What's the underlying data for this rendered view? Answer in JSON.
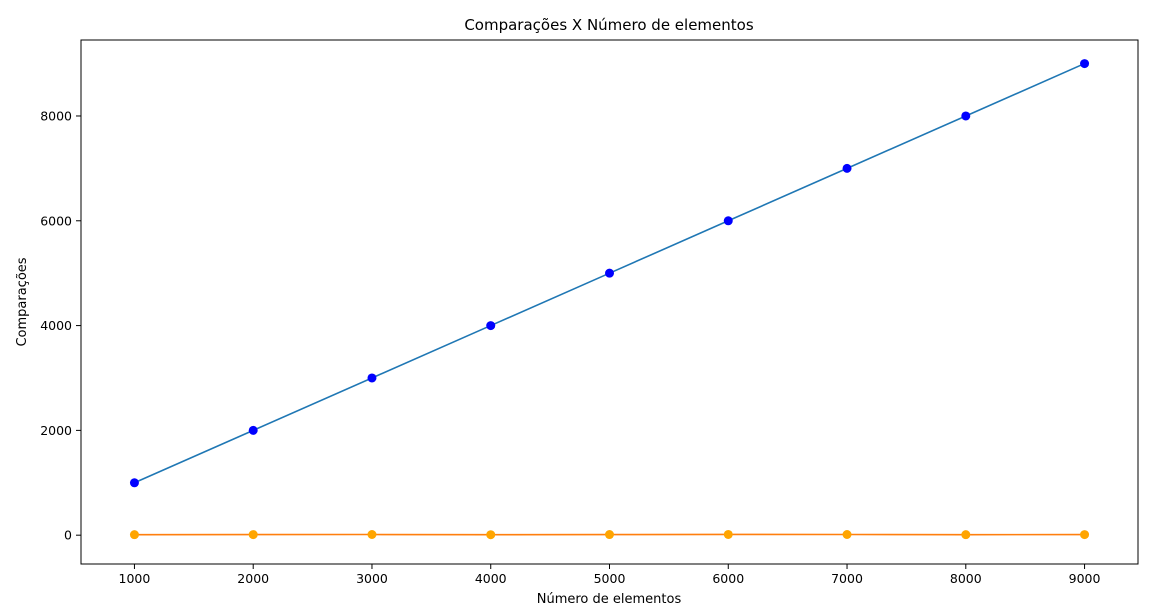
{
  "chart_data": {
    "type": "line",
    "title": "Comparações X Número de elementos",
    "xlabel": "Número de elementos",
    "ylabel": "Comparações",
    "xlim": [
      550,
      9450
    ],
    "ylim": [
      -550,
      9450
    ],
    "xticks": [
      1000,
      2000,
      3000,
      4000,
      5000,
      6000,
      7000,
      8000,
      9000
    ],
    "yticks": [
      0,
      2000,
      4000,
      6000,
      8000
    ],
    "x": [
      1000,
      2000,
      3000,
      4000,
      5000,
      6000,
      7000,
      8000,
      9000
    ],
    "grid": false,
    "legend": "none",
    "series": [
      {
        "values": [
          1000,
          2000,
          3000,
          4000,
          5000,
          6000,
          7000,
          8000,
          9000
        ],
        "line_color": "#1f77b4",
        "marker_color": "#0000ff"
      },
      {
        "values": [
          10,
          11,
          13,
          9,
          12,
          14,
          13,
          10,
          11
        ],
        "line_color": "#ff7f0e",
        "marker_color": "#ffa500"
      }
    ]
  }
}
